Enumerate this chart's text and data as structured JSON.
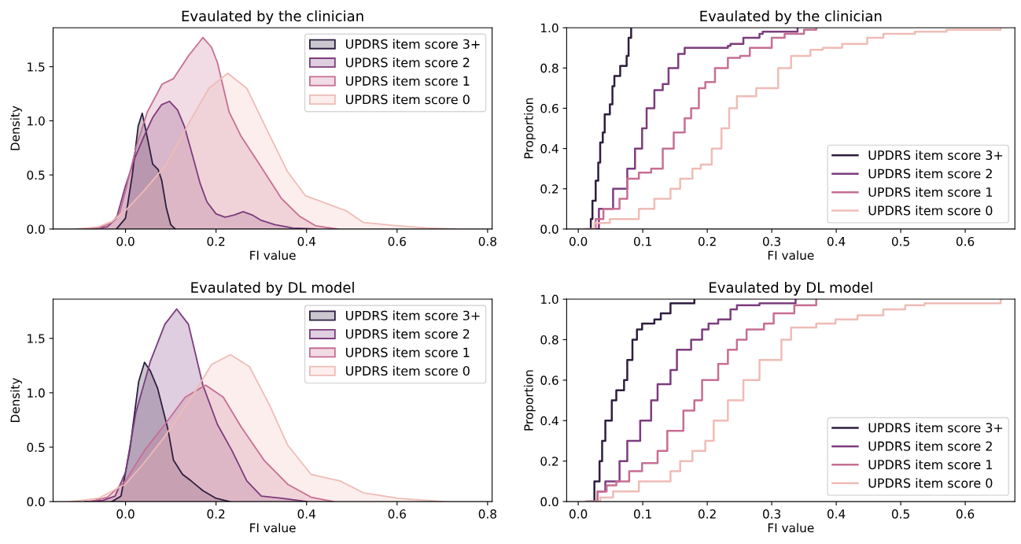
{
  "chart_data": [
    {
      "type": "area",
      "title": "Evaulated by the clinician",
      "xlabel": "FI value",
      "ylabel": "Density",
      "xlim": [
        -0.16,
        0.81
      ],
      "ylim": [
        0,
        1.86
      ],
      "xticks": [
        {
          "value": 0,
          "label": "0.0"
        },
        {
          "value": 0.2,
          "label": "0.2"
        },
        {
          "value": 0.4,
          "label": "0.4"
        },
        {
          "value": 0.6,
          "label": "0.6"
        },
        {
          "value": 0.8,
          "label": "0.8"
        }
      ],
      "yticks": [
        {
          "value": 0,
          "label": "0.0"
        },
        {
          "value": 0.5,
          "label": "0.5"
        },
        {
          "value": 1,
          "label": "1.0"
        },
        {
          "value": 1.5,
          "label": "1.5"
        }
      ],
      "legend": "top right",
      "grid": false,
      "series": [
        {
          "name": "UPDRS item score 3+",
          "color": "#2d1e3e",
          "x": [
            -0.02,
            0.0,
            0.015,
            0.028,
            0.037,
            0.048,
            0.06,
            0.072,
            0.08,
            0.09,
            0.1,
            0.11
          ],
          "values": [
            0,
            0.1,
            0.5,
            0.95,
            1.07,
            0.85,
            0.6,
            0.55,
            0.45,
            0.2,
            0.04,
            0
          ]
        },
        {
          "name": "UPDRS item score 2",
          "color": "#7d3c7e",
          "x": [
            -0.08,
            -0.04,
            -0.02,
            0.0,
            0.02,
            0.04,
            0.06,
            0.08,
            0.097,
            0.115,
            0.13,
            0.15,
            0.165,
            0.18,
            0.2,
            0.22,
            0.24,
            0.26,
            0.28,
            0.3,
            0.33,
            0.37,
            0.42
          ],
          "values": [
            0,
            0.02,
            0.1,
            0.4,
            0.65,
            0.85,
            1.03,
            1.15,
            1.18,
            1.1,
            0.95,
            0.65,
            0.42,
            0.25,
            0.14,
            0.11,
            0.13,
            0.16,
            0.13,
            0.08,
            0.04,
            0.01,
            0
          ]
        },
        {
          "name": "UPDRS item score 1",
          "color": "#c76e93",
          "x": [
            -0.1,
            -0.06,
            -0.03,
            -0.013,
            0.0,
            0.023,
            0.048,
            0.081,
            0.106,
            0.139,
            0.171,
            0.19,
            0.203,
            0.229,
            0.255,
            0.294,
            0.345,
            0.384,
            0.42,
            0.47
          ],
          "values": [
            0,
            0.01,
            0.06,
            0.15,
            0.35,
            0.75,
            1.08,
            1.34,
            1.39,
            1.6,
            1.77,
            1.68,
            1.54,
            1.08,
            0.86,
            0.61,
            0.28,
            0.12,
            0.03,
            0
          ]
        },
        {
          "name": "UPDRS item score 0",
          "color": "#efbcb6",
          "x": [
            -0.11,
            -0.06,
            -0.03,
            0.0,
            0.04,
            0.087,
            0.139,
            0.184,
            0.226,
            0.268,
            0.319,
            0.358,
            0.397,
            0.448,
            0.487,
            0.526,
            0.603,
            0.668,
            0.73
          ],
          "values": [
            0,
            0.02,
            0.07,
            0.17,
            0.35,
            0.58,
            0.97,
            1.3,
            1.44,
            1.3,
            0.86,
            0.53,
            0.31,
            0.23,
            0.17,
            0.06,
            0.03,
            0.01,
            0
          ]
        }
      ]
    },
    {
      "type": "step",
      "title": "Evaulated by the clinician",
      "xlabel": "FI value",
      "ylabel": "Proportion",
      "xlim": [
        -0.018,
        0.677
      ],
      "ylim": [
        0,
        1
      ],
      "xticks": [
        {
          "value": 0,
          "label": "0.0"
        },
        {
          "value": 0.1,
          "label": "0.1"
        },
        {
          "value": 0.2,
          "label": "0.2"
        },
        {
          "value": 0.3,
          "label": "0.3"
        },
        {
          "value": 0.4,
          "label": "0.4"
        },
        {
          "value": 0.5,
          "label": "0.5"
        },
        {
          "value": 0.6,
          "label": "0.6"
        }
      ],
      "yticks": [
        {
          "value": 0,
          "label": "0.0"
        },
        {
          "value": 0.2,
          "label": "0.2"
        },
        {
          "value": 0.4,
          "label": "0.4"
        },
        {
          "value": 0.6,
          "label": "0.6"
        },
        {
          "value": 0.8,
          "label": "0.8"
        },
        {
          "value": 1,
          "label": "1.0"
        }
      ],
      "legend": "bottom right",
      "grid": false,
      "series": [
        {
          "name": "UPDRS item score 3+",
          "color": "#2d1e3e",
          "x": [
            0.019,
            0.0195,
            0.022,
            0.027,
            0.031,
            0.034,
            0.038,
            0.041,
            0.049,
            0.053,
            0.056,
            0.065,
            0.075,
            0.078,
            0.082
          ],
          "values": [
            0,
            0.05,
            0.14,
            0.24,
            0.33,
            0.43,
            0.48,
            0.57,
            0.62,
            0.71,
            0.76,
            0.81,
            0.86,
            0.95,
            1.0
          ]
        },
        {
          "name": "UPDRS item score 2",
          "color": "#7d3c7e",
          "x": [
            0.019,
            0.032,
            0.054,
            0.076,
            0.088,
            0.099,
            0.106,
            0.118,
            0.131,
            0.14,
            0.155,
            0.165,
            0.232,
            0.236,
            0.256,
            0.281,
            0.286,
            0.34
          ],
          "values": [
            0,
            0.1,
            0.2,
            0.3,
            0.4,
            0.5,
            0.6,
            0.69,
            0.72,
            0.8,
            0.87,
            0.9,
            0.91,
            0.92,
            0.95,
            0.97,
            0.98,
            1.0
          ]
        },
        {
          "name": "UPDRS item score 1",
          "color": "#c76e93",
          "x": [
            0.012,
            0.027,
            0.039,
            0.064,
            0.076,
            0.094,
            0.113,
            0.131,
            0.148,
            0.165,
            0.175,
            0.187,
            0.197,
            0.212,
            0.232,
            0.251,
            0.266,
            0.3,
            0.32,
            0.35,
            0.369
          ],
          "values": [
            0,
            0.05,
            0.1,
            0.15,
            0.25,
            0.28,
            0.3,
            0.4,
            0.48,
            0.55,
            0.6,
            0.7,
            0.73,
            0.8,
            0.85,
            0.86,
            0.9,
            0.95,
            0.97,
            0.99,
            1.0
          ]
        },
        {
          "name": "UPDRS item score 0",
          "color": "#efbcb6",
          "x": [
            0.01,
            0.025,
            0.049,
            0.094,
            0.118,
            0.143,
            0.158,
            0.177,
            0.19,
            0.207,
            0.222,
            0.234,
            0.246,
            0.276,
            0.31,
            0.33,
            0.36,
            0.379,
            0.409,
            0.448,
            0.473,
            0.522,
            0.571,
            0.655
          ],
          "values": [
            0,
            0.03,
            0.05,
            0.1,
            0.15,
            0.2,
            0.25,
            0.3,
            0.32,
            0.4,
            0.5,
            0.6,
            0.66,
            0.7,
            0.8,
            0.86,
            0.89,
            0.9,
            0.92,
            0.95,
            0.97,
            0.98,
            0.99,
            1.0
          ]
        }
      ]
    },
    {
      "type": "area",
      "title": "Evaulated by DL model",
      "xlabel": "FI value",
      "ylabel": "Density",
      "xlim": [
        -0.16,
        0.81
      ],
      "ylim": [
        0,
        1.86
      ],
      "xticks": [
        {
          "value": 0,
          "label": "0.0"
        },
        {
          "value": 0.2,
          "label": "0.2"
        },
        {
          "value": 0.4,
          "label": "0.4"
        },
        {
          "value": 0.6,
          "label": "0.6"
        },
        {
          "value": 0.8,
          "label": "0.8"
        }
      ],
      "yticks": [
        {
          "value": 0,
          "label": "0.0"
        },
        {
          "value": 0.5,
          "label": "0.5"
        },
        {
          "value": 1,
          "label": "1.0"
        },
        {
          "value": 1.5,
          "label": "1.5"
        }
      ],
      "legend": "top right",
      "grid": false,
      "series": [
        {
          "name": "UPDRS item score 3+",
          "color": "#2d1e3e",
          "x": [
            -0.03,
            -0.01,
            0.01,
            0.029,
            0.042,
            0.055,
            0.071,
            0.094,
            0.106,
            0.126,
            0.145,
            0.171,
            0.2,
            0.23
          ],
          "values": [
            0,
            0.05,
            0.49,
            1.1,
            1.28,
            1.2,
            1.04,
            0.66,
            0.38,
            0.25,
            0.19,
            0.1,
            0.03,
            0
          ]
        },
        {
          "name": "UPDRS item score 2",
          "color": "#7d3c7e",
          "x": [
            -0.09,
            -0.05,
            -0.023,
            0.0,
            0.023,
            0.055,
            0.087,
            0.113,
            0.139,
            0.171,
            0.203,
            0.235,
            0.268,
            0.3,
            0.345,
            0.4
          ],
          "values": [
            0,
            0.01,
            0.05,
            0.27,
            0.82,
            1.29,
            1.63,
            1.77,
            1.63,
            1.07,
            0.71,
            0.47,
            0.19,
            0.05,
            0.03,
            0
          ]
        },
        {
          "name": "UPDRS item score 1",
          "color": "#c76e93",
          "x": [
            -0.08,
            -0.04,
            0.0,
            0.042,
            0.087,
            0.132,
            0.177,
            0.216,
            0.255,
            0.306,
            0.358,
            0.41,
            0.46
          ],
          "values": [
            0,
            0.04,
            0.19,
            0.47,
            0.71,
            0.96,
            1.07,
            0.96,
            0.69,
            0.38,
            0.16,
            0.04,
            0
          ]
        },
        {
          "name": "UPDRS item score 0",
          "color": "#efbcb6",
          "x": [
            -0.12,
            -0.06,
            0.0,
            0.04,
            0.087,
            0.152,
            0.19,
            0.232,
            0.274,
            0.319,
            0.358,
            0.41,
            0.474,
            0.526,
            0.603,
            0.7
          ],
          "values": [
            0,
            0.03,
            0.16,
            0.35,
            0.6,
            1.0,
            1.26,
            1.35,
            1.24,
            0.88,
            0.52,
            0.25,
            0.19,
            0.08,
            0.03,
            0
          ]
        }
      ]
    },
    {
      "type": "step",
      "title": "Evaulated by DL model",
      "xlabel": "FI value",
      "ylabel": "Proportion",
      "xlim": [
        -0.018,
        0.677
      ],
      "ylim": [
        0,
        1
      ],
      "xticks": [
        {
          "value": 0,
          "label": "0.0"
        },
        {
          "value": 0.1,
          "label": "0.1"
        },
        {
          "value": 0.2,
          "label": "0.2"
        },
        {
          "value": 0.3,
          "label": "0.3"
        },
        {
          "value": 0.4,
          "label": "0.4"
        },
        {
          "value": 0.5,
          "label": "0.5"
        },
        {
          "value": 0.6,
          "label": "0.6"
        }
      ],
      "yticks": [
        {
          "value": 0,
          "label": "0.0"
        },
        {
          "value": 0.2,
          "label": "0.2"
        },
        {
          "value": 0.4,
          "label": "0.4"
        },
        {
          "value": 0.6,
          "label": "0.6"
        },
        {
          "value": 0.8,
          "label": "0.8"
        },
        {
          "value": 1,
          "label": "1.0"
        }
      ],
      "legend": "bottom right",
      "grid": false,
      "series": [
        {
          "name": "UPDRS item score 3+",
          "color": "#2d1e3e",
          "x": [
            0.019,
            0.025,
            0.033,
            0.037,
            0.042,
            0.052,
            0.059,
            0.071,
            0.076,
            0.084,
            0.091,
            0.099,
            0.118,
            0.128,
            0.143,
            0.18
          ],
          "values": [
            0,
            0.1,
            0.2,
            0.3,
            0.4,
            0.5,
            0.55,
            0.6,
            0.7,
            0.8,
            0.85,
            0.88,
            0.9,
            0.93,
            0.98,
            1.0
          ]
        },
        {
          "name": "UPDRS item score 2",
          "color": "#7d3c7e",
          "x": [
            0.015,
            0.03,
            0.042,
            0.064,
            0.076,
            0.096,
            0.113,
            0.123,
            0.143,
            0.153,
            0.175,
            0.192,
            0.202,
            0.217,
            0.236,
            0.246,
            0.281,
            0.337
          ],
          "values": [
            0,
            0.05,
            0.1,
            0.2,
            0.3,
            0.4,
            0.5,
            0.58,
            0.65,
            0.75,
            0.8,
            0.85,
            0.88,
            0.9,
            0.95,
            0.97,
            0.98,
            1.0
          ]
        },
        {
          "name": "UPDRS item score 1",
          "color": "#c76e93",
          "x": [
            0.012,
            0.03,
            0.044,
            0.059,
            0.079,
            0.099,
            0.123,
            0.138,
            0.163,
            0.18,
            0.192,
            0.217,
            0.232,
            0.246,
            0.261,
            0.288,
            0.303,
            0.335,
            0.369
          ],
          "values": [
            0,
            0.05,
            0.08,
            0.1,
            0.15,
            0.19,
            0.25,
            0.35,
            0.45,
            0.5,
            0.6,
            0.68,
            0.75,
            0.8,
            0.85,
            0.88,
            0.93,
            0.97,
            1.0
          ]
        },
        {
          "name": "UPDRS item score 0",
          "color": "#efbcb6",
          "x": [
            0.012,
            0.034,
            0.054,
            0.094,
            0.143,
            0.158,
            0.177,
            0.197,
            0.21,
            0.232,
            0.256,
            0.281,
            0.315,
            0.33,
            0.369,
            0.399,
            0.433,
            0.473,
            0.507,
            0.537,
            0.655
          ],
          "values": [
            0,
            0.02,
            0.05,
            0.1,
            0.15,
            0.2,
            0.25,
            0.3,
            0.4,
            0.5,
            0.6,
            0.7,
            0.8,
            0.86,
            0.88,
            0.9,
            0.92,
            0.95,
            0.97,
            0.98,
            1.0
          ]
        }
      ]
    }
  ]
}
